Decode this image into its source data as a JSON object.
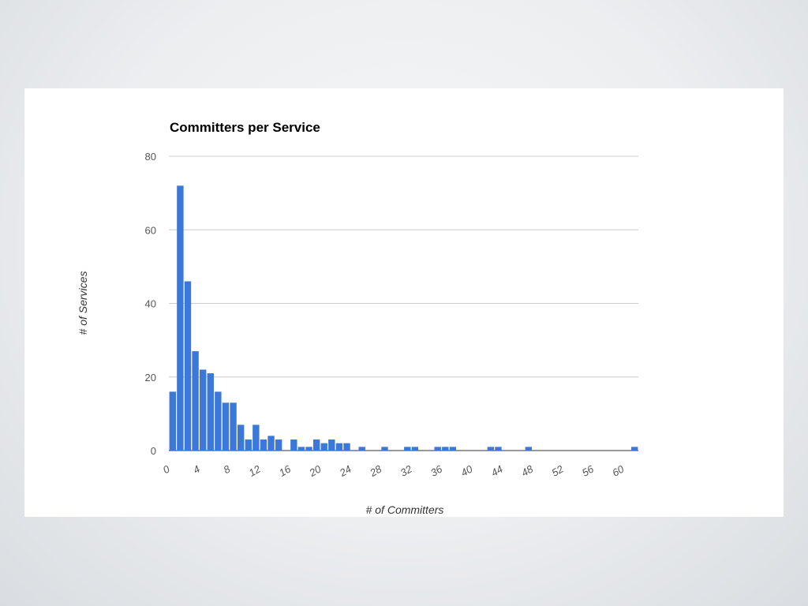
{
  "chart_data": {
    "type": "bar",
    "title": "Committers per Service",
    "xlabel": "# of Committers",
    "ylabel": "# of Services",
    "ylim": [
      0,
      80
    ],
    "y_ticks": [
      0,
      20,
      40,
      60,
      80
    ],
    "x_ticks": [
      0,
      4,
      8,
      12,
      16,
      20,
      24,
      28,
      32,
      36,
      40,
      44,
      48,
      52,
      56,
      60
    ],
    "xlim": [
      0,
      61
    ],
    "grid": true,
    "legend": "none",
    "bar_color": "#3b78d8",
    "x": [
      0,
      1,
      2,
      3,
      4,
      5,
      6,
      7,
      8,
      9,
      10,
      11,
      12,
      13,
      14,
      16,
      17,
      18,
      19,
      20,
      21,
      22,
      23,
      25,
      28,
      31,
      32,
      35,
      36,
      37,
      42,
      43,
      47,
      61
    ],
    "values": [
      16,
      72,
      46,
      27,
      22,
      21,
      16,
      13,
      13,
      7,
      3,
      7,
      3,
      4,
      3,
      3,
      1,
      1,
      3,
      2,
      3,
      2,
      2,
      1,
      1,
      1,
      1,
      1,
      1,
      1,
      1,
      1,
      1,
      1
    ]
  }
}
